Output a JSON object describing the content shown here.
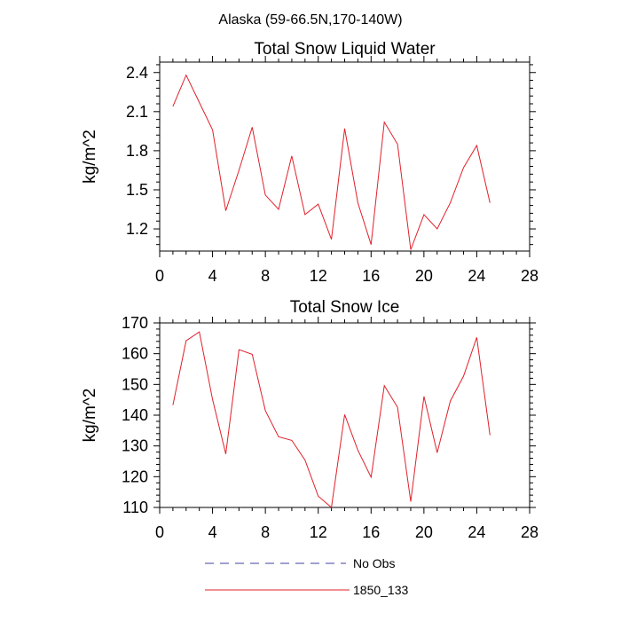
{
  "suptitle": "Alaska (59-66.5N,170-140W)",
  "legend": {
    "entries": [
      {
        "label": "No Obs",
        "color": "#4040a0",
        "style": "dashed"
      },
      {
        "label": "1850_133",
        "color": "#e0202a",
        "style": "solid"
      }
    ]
  },
  "chart_data": [
    {
      "type": "line",
      "title": "Total Snow Liquid Water",
      "xlabel": "",
      "ylabel": "kg/m^2",
      "xlim": [
        0,
        28
      ],
      "ylim": [
        1.03,
        2.48
      ],
      "xticks": [
        0,
        4,
        8,
        12,
        16,
        20,
        24,
        28
      ],
      "xtick_labels": [
        "0",
        "4",
        "8",
        "12",
        "16",
        "20",
        "24",
        "28"
      ],
      "yticks": [
        1.2,
        1.5,
        1.8,
        2.1,
        2.4
      ],
      "ytick_labels": [
        "1.2",
        "1.5",
        "1.8",
        "2.1",
        "2.4"
      ],
      "x": [
        1,
        2,
        3,
        4,
        5,
        6,
        7,
        8,
        9,
        10,
        11,
        12,
        13,
        14,
        15,
        16,
        17,
        18,
        19,
        20,
        21,
        22,
        23,
        24,
        25
      ],
      "series": [
        {
          "name": "1850_133",
          "color": "#e0202a",
          "values": [
            2.14,
            2.38,
            2.17,
            1.96,
            1.34,
            1.65,
            1.98,
            1.46,
            1.35,
            1.76,
            1.31,
            1.39,
            1.12,
            1.97,
            1.4,
            1.08,
            2.02,
            1.85,
            1.04,
            1.31,
            1.2,
            1.4,
            1.67,
            1.84,
            1.4
          ]
        }
      ]
    },
    {
      "type": "line",
      "title": "Total Snow Ice",
      "xlabel": "",
      "ylabel": "kg/m^2",
      "xlim": [
        0,
        28
      ],
      "ylim": [
        110,
        170
      ],
      "xticks": [
        0,
        4,
        8,
        12,
        16,
        20,
        24,
        28
      ],
      "xtick_labels": [
        "0",
        "4",
        "8",
        "12",
        "16",
        "20",
        "24",
        "28"
      ],
      "yticks": [
        110,
        120,
        130,
        140,
        150,
        160,
        170
      ],
      "ytick_labels": [
        "110",
        "120",
        "130",
        "140",
        "150",
        "160",
        "170"
      ],
      "x": [
        1,
        2,
        3,
        4,
        5,
        6,
        7,
        8,
        9,
        10,
        11,
        12,
        13,
        14,
        15,
        16,
        17,
        18,
        19,
        20,
        21,
        22,
        23,
        24,
        25
      ],
      "series": [
        {
          "name": "1850_133",
          "color": "#e0202a",
          "values": [
            143.3,
            164.2,
            167.1,
            145.1,
            127.4,
            161.3,
            159.8,
            141.5,
            133.0,
            131.8,
            125.4,
            113.7,
            110.0,
            140.2,
            128.6,
            119.8,
            149.6,
            142.6,
            111.9,
            146.1,
            127.8,
            144.6,
            152.7,
            165.3,
            133.5
          ]
        }
      ]
    }
  ]
}
